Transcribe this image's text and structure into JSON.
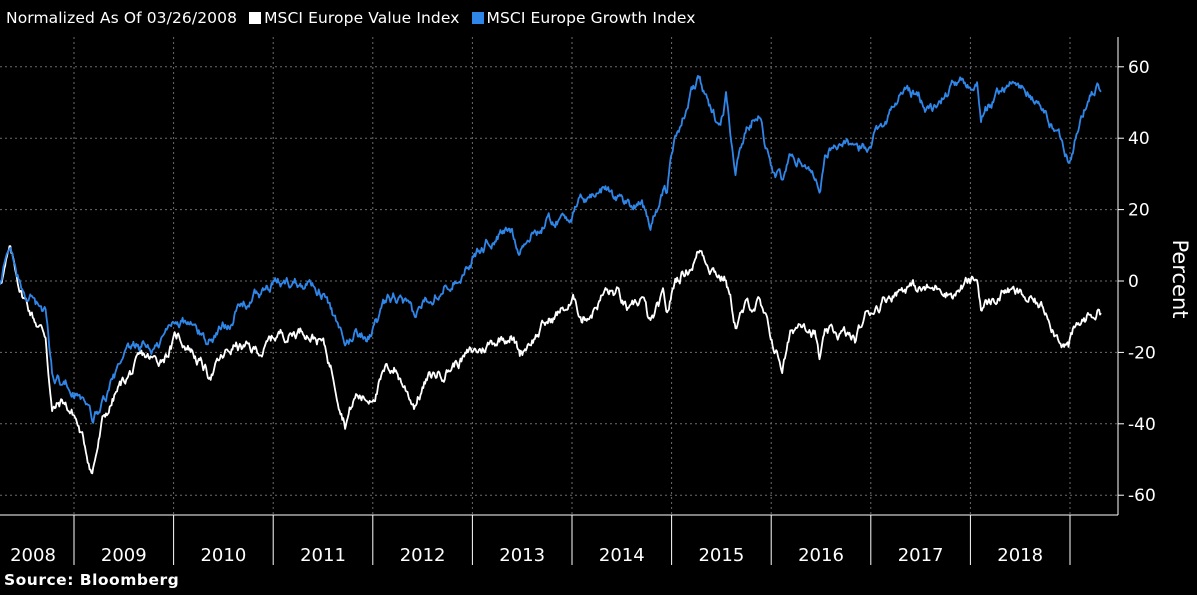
{
  "header": {
    "normalized_label": "Normalized As Of 03/26/2008"
  },
  "source": "Source: Bloomberg",
  "colors": {
    "background": "#000000",
    "value": "#ffffff",
    "growth": "#2f86e8",
    "grid": "#6b6b6b"
  },
  "chart_data": {
    "type": "line",
    "title": "",
    "ylabel": "Percent",
    "ylim": [
      -65,
      67
    ],
    "y_ticks": [
      60,
      40,
      20,
      0,
      -20,
      -40,
      -60
    ],
    "x_ticks": [
      "2008",
      "2009",
      "2010",
      "2011",
      "2012",
      "2013",
      "2014",
      "2015",
      "2016",
      "2017",
      "2018"
    ],
    "x_start": "2008-03-26",
    "series": [
      {
        "name": "MSCI Europe Value Index",
        "color": "#ffffff",
        "x": [
          "2008-03-26",
          "2008-05-01",
          "2008-06-15",
          "2008-08-01",
          "2008-09-15",
          "2008-10-10",
          "2008-11-20",
          "2009-01-05",
          "2009-03-09",
          "2009-04-15",
          "2009-06-01",
          "2009-07-15",
          "2009-09-15",
          "2009-11-01",
          "2010-01-15",
          "2010-03-01",
          "2010-05-07",
          "2010-06-30",
          "2010-08-15",
          "2010-10-15",
          "2010-12-01",
          "2011-01-15",
          "2011-03-15",
          "2011-05-01",
          "2011-07-01",
          "2011-08-10",
          "2011-09-22",
          "2011-11-01",
          "2011-12-15",
          "2012-02-15",
          "2012-03-20",
          "2012-05-01",
          "2012-06-01",
          "2012-07-15",
          "2012-09-15",
          "2012-11-15",
          "2013-01-15",
          "2013-03-15",
          "2013-05-20",
          "2013-06-24",
          "2013-08-01",
          "2013-10-01",
          "2013-12-01",
          "2014-01-15",
          "2014-02-05",
          "2014-03-15",
          "2014-05-01",
          "2014-06-15",
          "2014-08-07",
          "2014-09-15",
          "2014-10-16",
          "2014-12-01",
          "2014-12-16",
          "2015-01-15",
          "2015-03-15",
          "2015-04-15",
          "2015-05-15",
          "2015-06-30",
          "2015-07-20",
          "2015-08-24",
          "2015-09-30",
          "2015-11-15",
          "2015-12-15",
          "2016-01-20",
          "2016-02-11",
          "2016-03-15",
          "2016-05-01",
          "2016-06-10",
          "2016-06-27",
          "2016-07-20",
          "2016-09-15",
          "2016-11-04",
          "2016-12-15",
          "2017-01-15",
          "2017-03-15",
          "2017-05-15",
          "2017-06-15",
          "2017-08-15",
          "2017-09-15",
          "2017-11-01",
          "2017-12-15",
          "2018-01-26",
          "2018-02-09",
          "2018-03-23",
          "2018-05-15",
          "2018-06-15",
          "2018-08-15",
          "2018-10-15",
          "2018-11-15",
          "2018-12-27",
          "2019-01-15",
          "2019-02-15",
          "2019-03-15",
          "2019-04-15",
          "2019-04-25"
        ],
        "values": [
          0,
          8,
          -3,
          -10,
          -15,
          -36,
          -34,
          -38,
          -53,
          -40,
          -32,
          -27,
          -22,
          -23,
          -16,
          -18,
          -26,
          -22,
          -18,
          -20,
          -19,
          -15,
          -14,
          -13,
          -17,
          -26,
          -38,
          -32,
          -33,
          -26,
          -24,
          -30,
          -34,
          -28,
          -25,
          -22,
          -20,
          -17,
          -14,
          -20,
          -16,
          -12,
          -8,
          -6,
          -10,
          -8,
          -3,
          -4,
          -10,
          -5,
          -13,
          -6,
          -10,
          0,
          5,
          9,
          6,
          2,
          1,
          -12,
          -8,
          -6,
          -13,
          -20,
          -24,
          -15,
          -10,
          -14,
          -22,
          -16,
          -15,
          -17,
          -10,
          -7,
          -3,
          -1,
          -2,
          -3,
          -1,
          -3,
          -1,
          0,
          -7,
          -6,
          -2,
          -4,
          -6,
          -9,
          -14,
          -18,
          -15,
          -12,
          -10,
          -8,
          -9
        ]
      },
      {
        "name": "MSCI Europe Growth Index",
        "color": "#2f86e8",
        "x": [
          "2008-03-26",
          "2008-05-01",
          "2008-06-15",
          "2008-08-01",
          "2008-09-15",
          "2008-10-10",
          "2008-11-20",
          "2009-01-05",
          "2009-03-09",
          "2009-04-15",
          "2009-06-01",
          "2009-07-15",
          "2009-09-15",
          "2009-11-01",
          "2010-01-15",
          "2010-03-01",
          "2010-05-07",
          "2010-06-30",
          "2010-08-15",
          "2010-10-15",
          "2010-12-01",
          "2011-01-15",
          "2011-03-15",
          "2011-05-01",
          "2011-07-01",
          "2011-08-10",
          "2011-09-22",
          "2011-11-01",
          "2011-12-15",
          "2012-02-15",
          "2012-03-20",
          "2012-05-01",
          "2012-06-01",
          "2012-07-15",
          "2012-09-15",
          "2012-11-15",
          "2013-01-15",
          "2013-03-15",
          "2013-05-20",
          "2013-06-24",
          "2013-08-01",
          "2013-10-01",
          "2013-12-01",
          "2014-01-15",
          "2014-02-05",
          "2014-03-15",
          "2014-05-01",
          "2014-06-15",
          "2014-08-07",
          "2014-09-15",
          "2014-10-16",
          "2014-12-01",
          "2014-12-16",
          "2015-01-15",
          "2015-03-15",
          "2015-04-15",
          "2015-05-15",
          "2015-06-30",
          "2015-07-20",
          "2015-08-24",
          "2015-09-30",
          "2015-11-15",
          "2015-12-15",
          "2016-01-20",
          "2016-02-11",
          "2016-03-15",
          "2016-05-01",
          "2016-06-10",
          "2016-06-27",
          "2016-07-20",
          "2016-09-15",
          "2016-11-04",
          "2016-12-15",
          "2017-01-15",
          "2017-03-15",
          "2017-05-15",
          "2017-06-15",
          "2017-08-15",
          "2017-09-15",
          "2017-11-01",
          "2017-12-15",
          "2018-01-26",
          "2018-02-09",
          "2018-03-23",
          "2018-05-15",
          "2018-06-15",
          "2018-08-15",
          "2018-10-15",
          "2018-11-15",
          "2018-12-27",
          "2019-01-15",
          "2019-02-15",
          "2019-03-15",
          "2019-04-15",
          "2019-04-25"
        ],
        "values": [
          0,
          9,
          -2,
          -5,
          -10,
          -26,
          -28,
          -30,
          -40,
          -34,
          -27,
          -22,
          -18,
          -19,
          -10,
          -12,
          -17,
          -13,
          -8,
          -5,
          -3,
          -1,
          0,
          1,
          -2,
          -10,
          -20,
          -14,
          -15,
          -8,
          -5,
          -8,
          -12,
          -5,
          0,
          3,
          8,
          12,
          14,
          10,
          13,
          17,
          18,
          20,
          22,
          24,
          26,
          24,
          21,
          24,
          15,
          26,
          24,
          42,
          52,
          57,
          48,
          44,
          52,
          32,
          42,
          49,
          38,
          30,
          28,
          35,
          34,
          30,
          28,
          36,
          40,
          35,
          38,
          42,
          48,
          54,
          52,
          48,
          50,
          55,
          54,
          56,
          46,
          50,
          56,
          55,
          52,
          45,
          42,
          35,
          40,
          46,
          52,
          55,
          53
        ]
      }
    ]
  }
}
